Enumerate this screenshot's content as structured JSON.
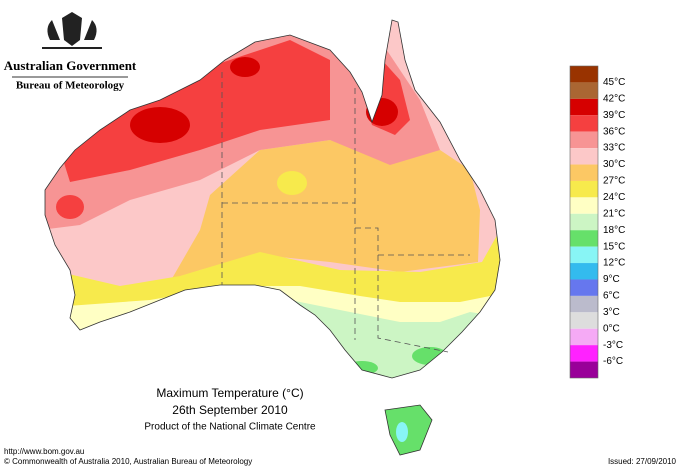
{
  "header": {
    "government": "Australian Government",
    "bureau": "Bureau of Meteorology"
  },
  "legend": {
    "labels": [
      "45°C",
      "42°C",
      "39°C",
      "36°C",
      "33°C",
      "30°C",
      "27°C",
      "24°C",
      "21°C",
      "18°C",
      "15°C",
      "12°C",
      "9°C",
      "6°C",
      "3°C",
      "0°C",
      "-3°C",
      "-6°C"
    ],
    "colors": [
      "#993300",
      "#aa6633",
      "#d60000",
      "#f54040",
      "#f79494",
      "#fcc8c8",
      "#fcc864",
      "#f7ea4c",
      "#ffffc4",
      "#ccf5c4",
      "#66e06a",
      "#88f5f5",
      "#33bbee",
      "#6677ee",
      "#bbbbcc",
      "#dddddd",
      "#f5aaf5",
      "#ff22ff",
      "#990099"
    ]
  },
  "caption": {
    "title": "Maximum Temperature (°C)",
    "date": "26th September 2010",
    "product": "Product of the National Climate Centre"
  },
  "footer": {
    "url": "http://www.bom.gov.au",
    "copyright": "© Commonwealth of Australia 2010, Australian Bureau of Meteorology",
    "issued": "Issued: 27/09/2010"
  }
}
